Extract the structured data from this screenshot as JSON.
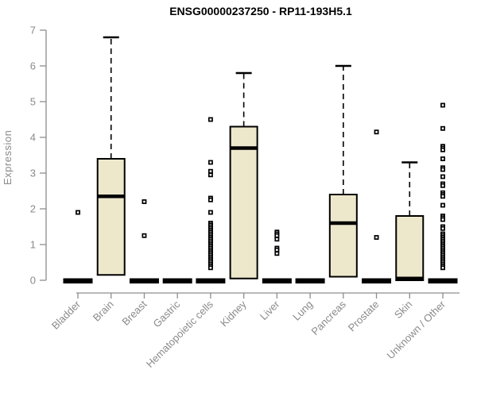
{
  "chart_data": {
    "type": "boxplot",
    "title": "ENSG00000237250 - RP11-193H5.1",
    "ylabel": "Expression",
    "xlabel": "",
    "ylim": [
      0,
      7
    ],
    "yticks": [
      "0",
      "1",
      "2",
      "3",
      "4",
      "5",
      "6",
      "7"
    ],
    "grid": false,
    "legend": "none",
    "categories": [
      "Bladder",
      "Brain",
      "Breast",
      "Gastric",
      "Hematopoietic cells",
      "Kidney",
      "Liver",
      "Lung",
      "Pancreas",
      "Prostate",
      "Skin",
      "Unknown / Other"
    ],
    "boxes": [
      {
        "category": "Bladder",
        "collapsed": true,
        "q1": 0,
        "median": 0,
        "q3": 0,
        "whisker_low": 0,
        "whisker_high": 0,
        "outliers": [
          1.9
        ]
      },
      {
        "category": "Brain",
        "collapsed": false,
        "q1": 0.15,
        "median": 2.35,
        "q3": 3.4,
        "whisker_low": 0.15,
        "whisker_high": 6.8,
        "outliers": []
      },
      {
        "category": "Breast",
        "collapsed": true,
        "q1": 0,
        "median": 0,
        "q3": 0,
        "whisker_low": 0,
        "whisker_high": 0,
        "outliers": [
          2.2,
          1.25
        ]
      },
      {
        "category": "Gastric",
        "collapsed": true,
        "q1": 0,
        "median": 0,
        "q3": 0,
        "whisker_low": 0,
        "whisker_high": 0,
        "outliers": []
      },
      {
        "category": "Hematopoietic cells",
        "collapsed": true,
        "q1": 0,
        "median": 0,
        "q3": 0,
        "whisker_low": 0,
        "whisker_high": 0,
        "outliers": [
          4.5,
          3.3,
          3.05,
          2.95,
          2.3,
          2.25,
          1.9,
          1.6,
          1.55,
          1.5,
          1.45,
          1.4,
          1.35,
          1.3,
          1.25,
          1.2,
          1.15,
          1.1,
          1.05,
          1.0,
          0.95,
          0.9,
          0.85,
          0.8,
          0.75,
          0.7,
          0.65,
          0.6,
          0.55,
          0.5,
          0.45,
          0.4,
          0.35
        ]
      },
      {
        "category": "Kidney",
        "collapsed": false,
        "q1": 0.05,
        "median": 3.7,
        "q3": 4.3,
        "whisker_low": 0.05,
        "whisker_high": 5.8,
        "outliers": []
      },
      {
        "category": "Liver",
        "collapsed": true,
        "q1": 0,
        "median": 0,
        "q3": 0,
        "whisker_low": 0,
        "whisker_high": 0,
        "outliers": [
          1.35,
          1.3,
          1.25,
          1.15,
          0.9,
          0.85,
          0.75
        ]
      },
      {
        "category": "Lung",
        "collapsed": true,
        "q1": 0,
        "median": 0,
        "q3": 0,
        "whisker_low": 0,
        "whisker_high": 0,
        "outliers": []
      },
      {
        "category": "Pancreas",
        "collapsed": false,
        "q1": 0.1,
        "median": 1.6,
        "q3": 2.4,
        "whisker_low": 0.1,
        "whisker_high": 6.0,
        "outliers": []
      },
      {
        "category": "Prostate",
        "collapsed": true,
        "q1": 0,
        "median": 0,
        "q3": 0,
        "whisker_low": 0,
        "whisker_high": 0,
        "outliers": [
          4.15,
          1.2
        ]
      },
      {
        "category": "Skin",
        "collapsed": false,
        "q1": 0,
        "median": 0.05,
        "q3": 1.8,
        "whisker_low": 0,
        "whisker_high": 3.3,
        "outliers": []
      },
      {
        "category": "Unknown / Other",
        "collapsed": true,
        "q1": 0,
        "median": 0,
        "q3": 0,
        "whisker_low": 0,
        "whisker_high": 0,
        "outliers": [
          4.9,
          4.25,
          3.75,
          3.7,
          3.65,
          3.4,
          3.15,
          3.1,
          2.9,
          2.7,
          2.65,
          2.45,
          2.4,
          2.35,
          2.1,
          1.8,
          1.75,
          1.7,
          1.5,
          1.45,
          1.3,
          1.25,
          1.2,
          1.15,
          1.1,
          1.05,
          1.0,
          0.95,
          0.9,
          0.85,
          0.8,
          0.75,
          0.7,
          0.65,
          0.6,
          0.55,
          0.5,
          0.45,
          0.4,
          0.35
        ]
      }
    ],
    "colors": {
      "box_fill": "#EDE8CC",
      "box_stroke": "#000000",
      "median": "#000000",
      "whisker": "#000000",
      "outlier": "#000000",
      "axis": "#8d8d8d",
      "tick_label": "#8a8a8a",
      "title": "#000000"
    }
  }
}
